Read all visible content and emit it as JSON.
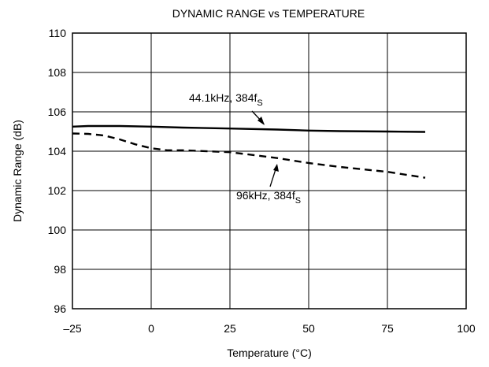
{
  "chart_data": {
    "type": "line",
    "title": "DYNAMIC RANGE vs TEMPERATURE",
    "xlabel": "Temperature (°C)",
    "ylabel": "Dynamic Range (dB)",
    "xlim": [
      -25,
      100
    ],
    "ylim": [
      96,
      110
    ],
    "xticks": [
      -25,
      0,
      25,
      50,
      75,
      100
    ],
    "xtick_labels": [
      "–25",
      "0",
      "25",
      "50",
      "75",
      "100"
    ],
    "yticks": [
      96,
      98,
      100,
      102,
      104,
      106,
      108,
      110
    ],
    "yticks_labels": [
      "96",
      "98",
      "100",
      "102",
      "104",
      "106",
      "108",
      "110"
    ],
    "grid": true,
    "series": [
      {
        "name": "44.1kHz, 384fS",
        "style": "solid",
        "color": "#000000",
        "x": [
          -25,
          -20,
          -10,
          0,
          10,
          25,
          40,
          50,
          60,
          75,
          87
        ],
        "y": [
          105.25,
          105.28,
          105.28,
          105.25,
          105.2,
          105.15,
          105.1,
          105.05,
          105.02,
          105.0,
          104.98
        ]
      },
      {
        "name": "96kHz, 384fS",
        "style": "dashed",
        "color": "#000000",
        "x": [
          -25,
          -20,
          -15,
          -10,
          -5,
          0,
          5,
          10,
          25,
          40,
          50,
          60,
          75,
          87
        ],
        "y": [
          104.9,
          104.88,
          104.8,
          104.6,
          104.35,
          104.15,
          104.05,
          104.05,
          103.95,
          103.65,
          103.4,
          103.2,
          102.95,
          102.65
        ]
      }
    ],
    "annotations": [
      {
        "label_main": "44.1kHz, 384f",
        "label_sub": "S"
      },
      {
        "label_main": "96kHz, 384f",
        "label_sub": "S"
      }
    ]
  }
}
